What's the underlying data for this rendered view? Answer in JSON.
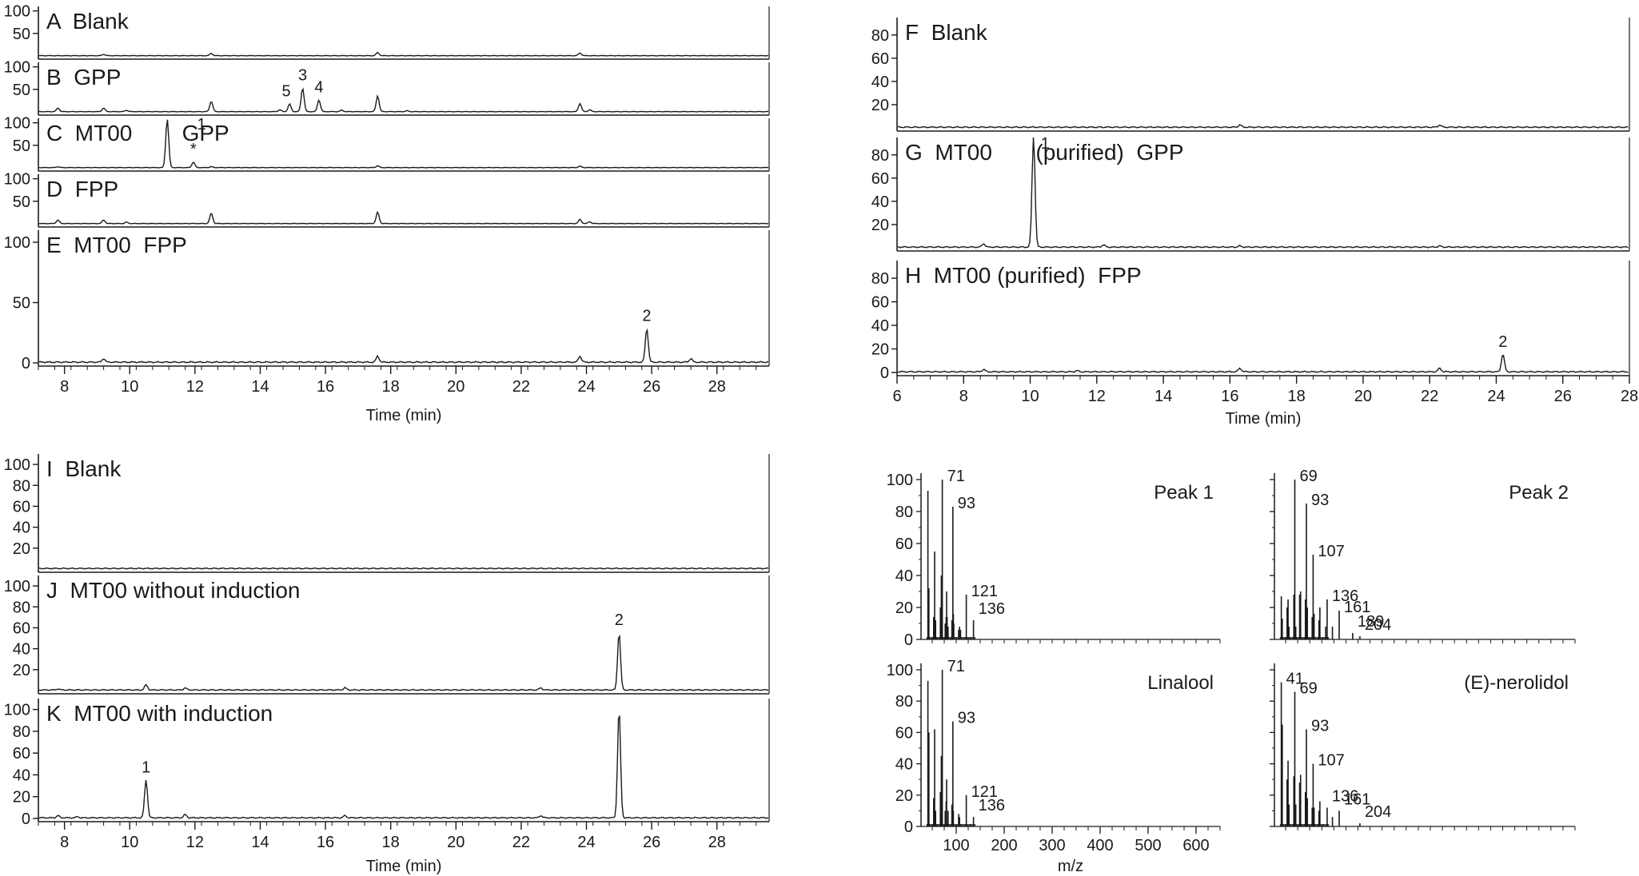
{
  "chart_data": [
    {
      "type": "line",
      "group": "chromatograms-left-top",
      "xlabel": "Time (min)",
      "xlim": [
        7.2,
        29.6
      ],
      "xticks": [
        8,
        10,
        12,
        14,
        16,
        18,
        20,
        22,
        24,
        26,
        28
      ],
      "panels": [
        {
          "label": "A  Blank",
          "yticks": [
            50,
            100
          ],
          "ylim": [
            0,
            110
          ],
          "zero_label": false,
          "peaks": [
            {
              "x": 9.2,
              "h": 3
            },
            {
              "x": 12.5,
              "h": 5
            },
            {
              "x": 17.6,
              "h": 7
            },
            {
              "x": 23.8,
              "h": 6
            }
          ],
          "peak_labels": []
        },
        {
          "label": "B  GPP",
          "yticks": [
            50,
            100
          ],
          "ylim": [
            0,
            110
          ],
          "zero_label": false,
          "peaks": [
            {
              "x": 7.8,
              "h": 8
            },
            {
              "x": 9.2,
              "h": 8
            },
            {
              "x": 9.9,
              "h": 3
            },
            {
              "x": 12.5,
              "h": 23
            },
            {
              "x": 14.6,
              "h": 4
            },
            {
              "x": 14.9,
              "h": 17
            },
            {
              "x": 15.3,
              "h": 52
            },
            {
              "x": 15.8,
              "h": 26
            },
            {
              "x": 16.5,
              "h": 3
            },
            {
              "x": 17.6,
              "h": 35
            },
            {
              "x": 18.5,
              "h": 2
            },
            {
              "x": 23.8,
              "h": 18
            },
            {
              "x": 24.1,
              "h": 4
            }
          ],
          "peak_labels": [
            {
              "text": "5",
              "x": 14.8,
              "h": 17
            },
            {
              "text": "3",
              "x": 15.3,
              "h": 52
            },
            {
              "text": "4",
              "x": 15.8,
              "h": 26
            }
          ]
        },
        {
          "label": "C  MT00        GPP",
          "yticks": [
            50,
            100
          ],
          "ylim": [
            0,
            110
          ],
          "zero_label": false,
          "peaks": [
            {
              "x": 7.8,
              "h": 2
            },
            {
              "x": 11.15,
              "h": 108
            },
            {
              "x": 11.95,
              "h": 12
            },
            {
              "x": 12.5,
              "h": 2
            },
            {
              "x": 17.6,
              "h": 4
            },
            {
              "x": 23.8,
              "h": 3
            }
          ],
          "peak_labels": [
            {
              "text": "1",
              "x": 11.15,
              "h": 108,
              "dx": 1.05
            },
            {
              "text": "*",
              "x": 11.95,
              "h": 12
            }
          ]
        },
        {
          "label": "D  FPP",
          "yticks": [
            50,
            100
          ],
          "ylim": [
            0,
            110
          ],
          "zero_label": false,
          "peaks": [
            {
              "x": 7.8,
              "h": 8
            },
            {
              "x": 9.2,
              "h": 8
            },
            {
              "x": 9.9,
              "h": 3
            },
            {
              "x": 12.5,
              "h": 23
            },
            {
              "x": 17.6,
              "h": 25
            },
            {
              "x": 23.8,
              "h": 9
            },
            {
              "x": 24.1,
              "h": 4
            }
          ],
          "peak_labels": []
        },
        {
          "label": "E  MT00  FPP",
          "yticks": [
            0,
            50,
            100
          ],
          "ylim": [
            0,
            110
          ],
          "zero_label": true,
          "peaks": [
            {
              "x": 9.2,
              "h": 3
            },
            {
              "x": 17.6,
              "h": 5
            },
            {
              "x": 23.8,
              "h": 5
            },
            {
              "x": 25.85,
              "h": 28
            },
            {
              "x": 27.2,
              "h": 3
            }
          ],
          "peak_labels": [
            {
              "text": "2",
              "x": 25.85,
              "h": 28
            }
          ]
        }
      ]
    },
    {
      "type": "line",
      "group": "chromatograms-right-top",
      "xlabel": "Time (min)",
      "xlim": [
        6,
        28
      ],
      "xticks": [
        6,
        8,
        10,
        12,
        14,
        16,
        18,
        20,
        22,
        24,
        26,
        28
      ],
      "panels": [
        {
          "label": "F  Blank",
          "yticks": [
            20,
            40,
            60,
            80
          ],
          "ylim": [
            0,
            95
          ],
          "zero_label": false,
          "peaks": [
            {
              "x": 16.3,
              "h": 2
            },
            {
              "x": 22.3,
              "h": 2
            }
          ],
          "peak_labels": []
        },
        {
          "label": "G  MT00       (purified)  GPP",
          "yticks": [
            20,
            40,
            60,
            80
          ],
          "ylim": [
            0,
            95
          ],
          "zero_label": false,
          "peaks": [
            {
              "x": 8.6,
              "h": 3
            },
            {
              "x": 10.1,
              "h": 95
            },
            {
              "x": 12.2,
              "h": 2
            },
            {
              "x": 16.3,
              "h": 1
            },
            {
              "x": 22.3,
              "h": 1
            }
          ],
          "peak_labels": [
            {
              "text": "1",
              "x": 10.1,
              "h": 95,
              "dx": 0.35
            }
          ]
        },
        {
          "label": "H  MT00 (purified)  FPP",
          "yticks": [
            0,
            20,
            40,
            60,
            80
          ],
          "ylim": [
            0,
            95
          ],
          "zero_label": true,
          "peaks": [
            {
              "x": 8.6,
              "h": 2
            },
            {
              "x": 11.4,
              "h": 1
            },
            {
              "x": 16.3,
              "h": 3
            },
            {
              "x": 22.3,
              "h": 3
            },
            {
              "x": 24.2,
              "h": 15
            }
          ],
          "peak_labels": [
            {
              "text": "2",
              "x": 24.2,
              "h": 15
            }
          ]
        }
      ]
    },
    {
      "type": "line",
      "group": "chromatograms-left-bottom",
      "xlabel": "Time (min)",
      "xlim": [
        7.2,
        29.6
      ],
      "xticks": [
        8,
        10,
        12,
        14,
        16,
        18,
        20,
        22,
        24,
        26,
        28
      ],
      "panels": [
        {
          "label": "I  Blank",
          "yticks": [
            20,
            40,
            60,
            80,
            100
          ],
          "ylim": [
            0,
            110
          ],
          "zero_label": false,
          "peaks": [],
          "peak_labels": []
        },
        {
          "label": "J  MT00 without induction",
          "yticks": [
            20,
            40,
            60,
            80,
            100
          ],
          "ylim": [
            0,
            110
          ],
          "zero_label": false,
          "peaks": [
            {
              "x": 7.8,
              "h": 1
            },
            {
              "x": 10.5,
              "h": 5
            },
            {
              "x": 11.7,
              "h": 2
            },
            {
              "x": 16.6,
              "h": 2
            },
            {
              "x": 22.6,
              "h": 2
            },
            {
              "x": 25.0,
              "h": 55
            }
          ],
          "peak_labels": [
            {
              "text": "2",
              "x": 25.0,
              "h": 55
            }
          ]
        },
        {
          "label": "K  MT00 with induction",
          "yticks": [
            0,
            20,
            40,
            60,
            80,
            100
          ],
          "ylim": [
            0,
            110
          ],
          "zero_label": true,
          "peaks": [
            {
              "x": 7.8,
              "h": 2
            },
            {
              "x": 8.4,
              "h": 1
            },
            {
              "x": 10.5,
              "h": 35
            },
            {
              "x": 11.7,
              "h": 3
            },
            {
              "x": 16.6,
              "h": 2
            },
            {
              "x": 22.6,
              "h": 2
            },
            {
              "x": 25.0,
              "h": 100
            }
          ],
          "peak_labels": [
            {
              "text": "1",
              "x": 10.5,
              "h": 35
            }
          ]
        }
      ]
    },
    {
      "type": "bar",
      "group": "mass-spectra",
      "xlabel": "m/z",
      "xlim": [
        40,
        650
      ],
      "xticks": [
        100,
        200,
        300,
        400,
        500,
        600
      ],
      "yticks": [
        0,
        20,
        40,
        60,
        80,
        100
      ],
      "ylim": [
        0,
        100
      ],
      "spectra": [
        {
          "title": "Peak 1",
          "peaks": [
            [
              41,
              93
            ],
            [
              43,
              32
            ],
            [
              53,
              14
            ],
            [
              55,
              55
            ],
            [
              57,
              12
            ],
            [
              67,
              20
            ],
            [
              69,
              40
            ],
            [
              71,
              100
            ],
            [
              77,
              10
            ],
            [
              79,
              14
            ],
            [
              80,
              30
            ],
            [
              81,
              14
            ],
            [
              83,
              8
            ],
            [
              91,
              12
            ],
            [
              93,
              83
            ],
            [
              94,
              16
            ],
            [
              95,
              10
            ],
            [
              105,
              6
            ],
            [
              107,
              8
            ],
            [
              109,
              6
            ],
            [
              121,
              28
            ],
            [
              136,
              12
            ]
          ],
          "labels": [
            {
              "text": "71",
              "mz": 71
            },
            {
              "text": "93",
              "mz": 93
            },
            {
              "text": "121",
              "mz": 121
            },
            {
              "text": "136",
              "mz": 136
            }
          ]
        },
        {
          "title": "Peak 2",
          "peaks": [
            [
              41,
              27
            ],
            [
              43,
              13
            ],
            [
              53,
              20
            ],
            [
              55,
              25
            ],
            [
              57,
              8
            ],
            [
              67,
              28
            ],
            [
              69,
              100
            ],
            [
              71,
              8
            ],
            [
              79,
              28
            ],
            [
              81,
              30
            ],
            [
              91,
              25
            ],
            [
              93,
              85
            ],
            [
              95,
              20
            ],
            [
              105,
              14
            ],
            [
              107,
              53
            ],
            [
              109,
              16
            ],
            [
              119,
              12
            ],
            [
              121,
              20
            ],
            [
              133,
              8
            ],
            [
              136,
              25
            ],
            [
              147,
              8
            ],
            [
              161,
              18
            ],
            [
              189,
              4
            ],
            [
              204,
              2
            ]
          ],
          "labels": [
            {
              "text": "69",
              "mz": 69
            },
            {
              "text": "93",
              "mz": 93
            },
            {
              "text": "107",
              "mz": 107
            },
            {
              "text": "136",
              "mz": 136
            },
            {
              "text": "161",
              "mz": 161
            },
            {
              "text": "189",
              "mz": 189
            },
            {
              "text": "204",
              "mz": 204
            }
          ]
        },
        {
          "title": "Linalool",
          "peaks": [
            [
              41,
              93
            ],
            [
              43,
              60
            ],
            [
              53,
              18
            ],
            [
              55,
              62
            ],
            [
              57,
              10
            ],
            [
              67,
              22
            ],
            [
              69,
              45
            ],
            [
              71,
              100
            ],
            [
              77,
              10
            ],
            [
              79,
              16
            ],
            [
              80,
              30
            ],
            [
              83,
              10
            ],
            [
              91,
              14
            ],
            [
              93,
              67
            ],
            [
              94,
              10
            ],
            [
              105,
              8
            ],
            [
              107,
              6
            ],
            [
              121,
              20
            ],
            [
              136,
              6
            ]
          ],
          "labels": [
            {
              "text": "71",
              "mz": 71
            },
            {
              "text": "93",
              "mz": 93
            },
            {
              "text": "121",
              "mz": 121
            },
            {
              "text": "136",
              "mz": 136
            }
          ]
        },
        {
          "title": "(E)-nerolidol",
          "peaks": [
            [
              41,
              92
            ],
            [
              43,
              65
            ],
            [
              53,
              30
            ],
            [
              55,
              42
            ],
            [
              57,
              14
            ],
            [
              67,
              32
            ],
            [
              69,
              86
            ],
            [
              71,
              14
            ],
            [
              79,
              28
            ],
            [
              81,
              33
            ],
            [
              91,
              22
            ],
            [
              93,
              62
            ],
            [
              95,
              18
            ],
            [
              105,
              12
            ],
            [
              107,
              40
            ],
            [
              109,
              12
            ],
            [
              119,
              10
            ],
            [
              121,
              16
            ],
            [
              136,
              12
            ],
            [
              147,
              6
            ],
            [
              161,
              10
            ],
            [
              204,
              2
            ]
          ],
          "labels": [
            {
              "text": "41",
              "mz": 41
            },
            {
              "text": "69",
              "mz": 69
            },
            {
              "text": "93",
              "mz": 93
            },
            {
              "text": "107",
              "mz": 107
            },
            {
              "text": "136",
              "mz": 136
            },
            {
              "text": "161",
              "mz": 161
            },
            {
              "text": "204",
              "mz": 204
            }
          ]
        }
      ]
    }
  ]
}
